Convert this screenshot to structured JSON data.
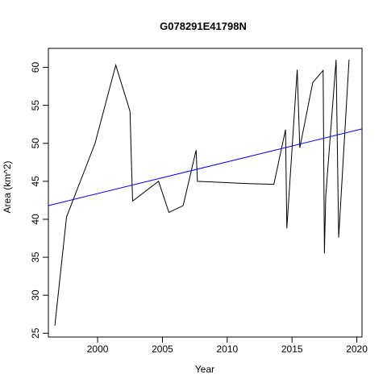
{
  "chart_data": {
    "type": "line",
    "title": "G078291E41798N",
    "xlabel": "Year",
    "ylabel": "Area (km^2)",
    "xlim": [
      1996.2,
      2020.4
    ],
    "ylim": [
      24.5,
      62.5
    ],
    "x_ticks": [
      2000,
      2005,
      2010,
      2015,
      2020
    ],
    "y_ticks": [
      25,
      30,
      35,
      40,
      45,
      50,
      55,
      60
    ],
    "grid": false,
    "series": [
      {
        "color": "#000000",
        "points": [
          [
            1996.7,
            26.0
          ],
          [
            1997.6,
            40.3
          ],
          [
            1999.8,
            50.0
          ],
          [
            2001.4,
            60.3
          ],
          [
            2002.5,
            54.2
          ],
          [
            2002.6,
            48.0
          ],
          [
            2002.7,
            42.4
          ],
          [
            2004.7,
            45.0
          ],
          [
            2005.5,
            40.9
          ],
          [
            2006.6,
            41.8
          ],
          [
            2007.6,
            49.1
          ],
          [
            2007.7,
            45.0
          ],
          [
            2011.6,
            44.7
          ],
          [
            2013.6,
            44.6
          ],
          [
            2014.5,
            51.8
          ],
          [
            2014.6,
            38.8
          ],
          [
            2015.4,
            59.7
          ],
          [
            2015.6,
            49.4
          ],
          [
            2016.6,
            58.0
          ],
          [
            2017.4,
            59.6
          ],
          [
            2017.5,
            35.5
          ],
          [
            2017.6,
            43.0
          ],
          [
            2018.4,
            61.0
          ],
          [
            2018.6,
            37.6
          ],
          [
            2019.4,
            61.0
          ]
        ]
      },
      {
        "color": "#0000ff",
        "points": [
          [
            1996.2,
            41.8
          ],
          [
            2020.4,
            51.9
          ]
        ]
      }
    ]
  }
}
